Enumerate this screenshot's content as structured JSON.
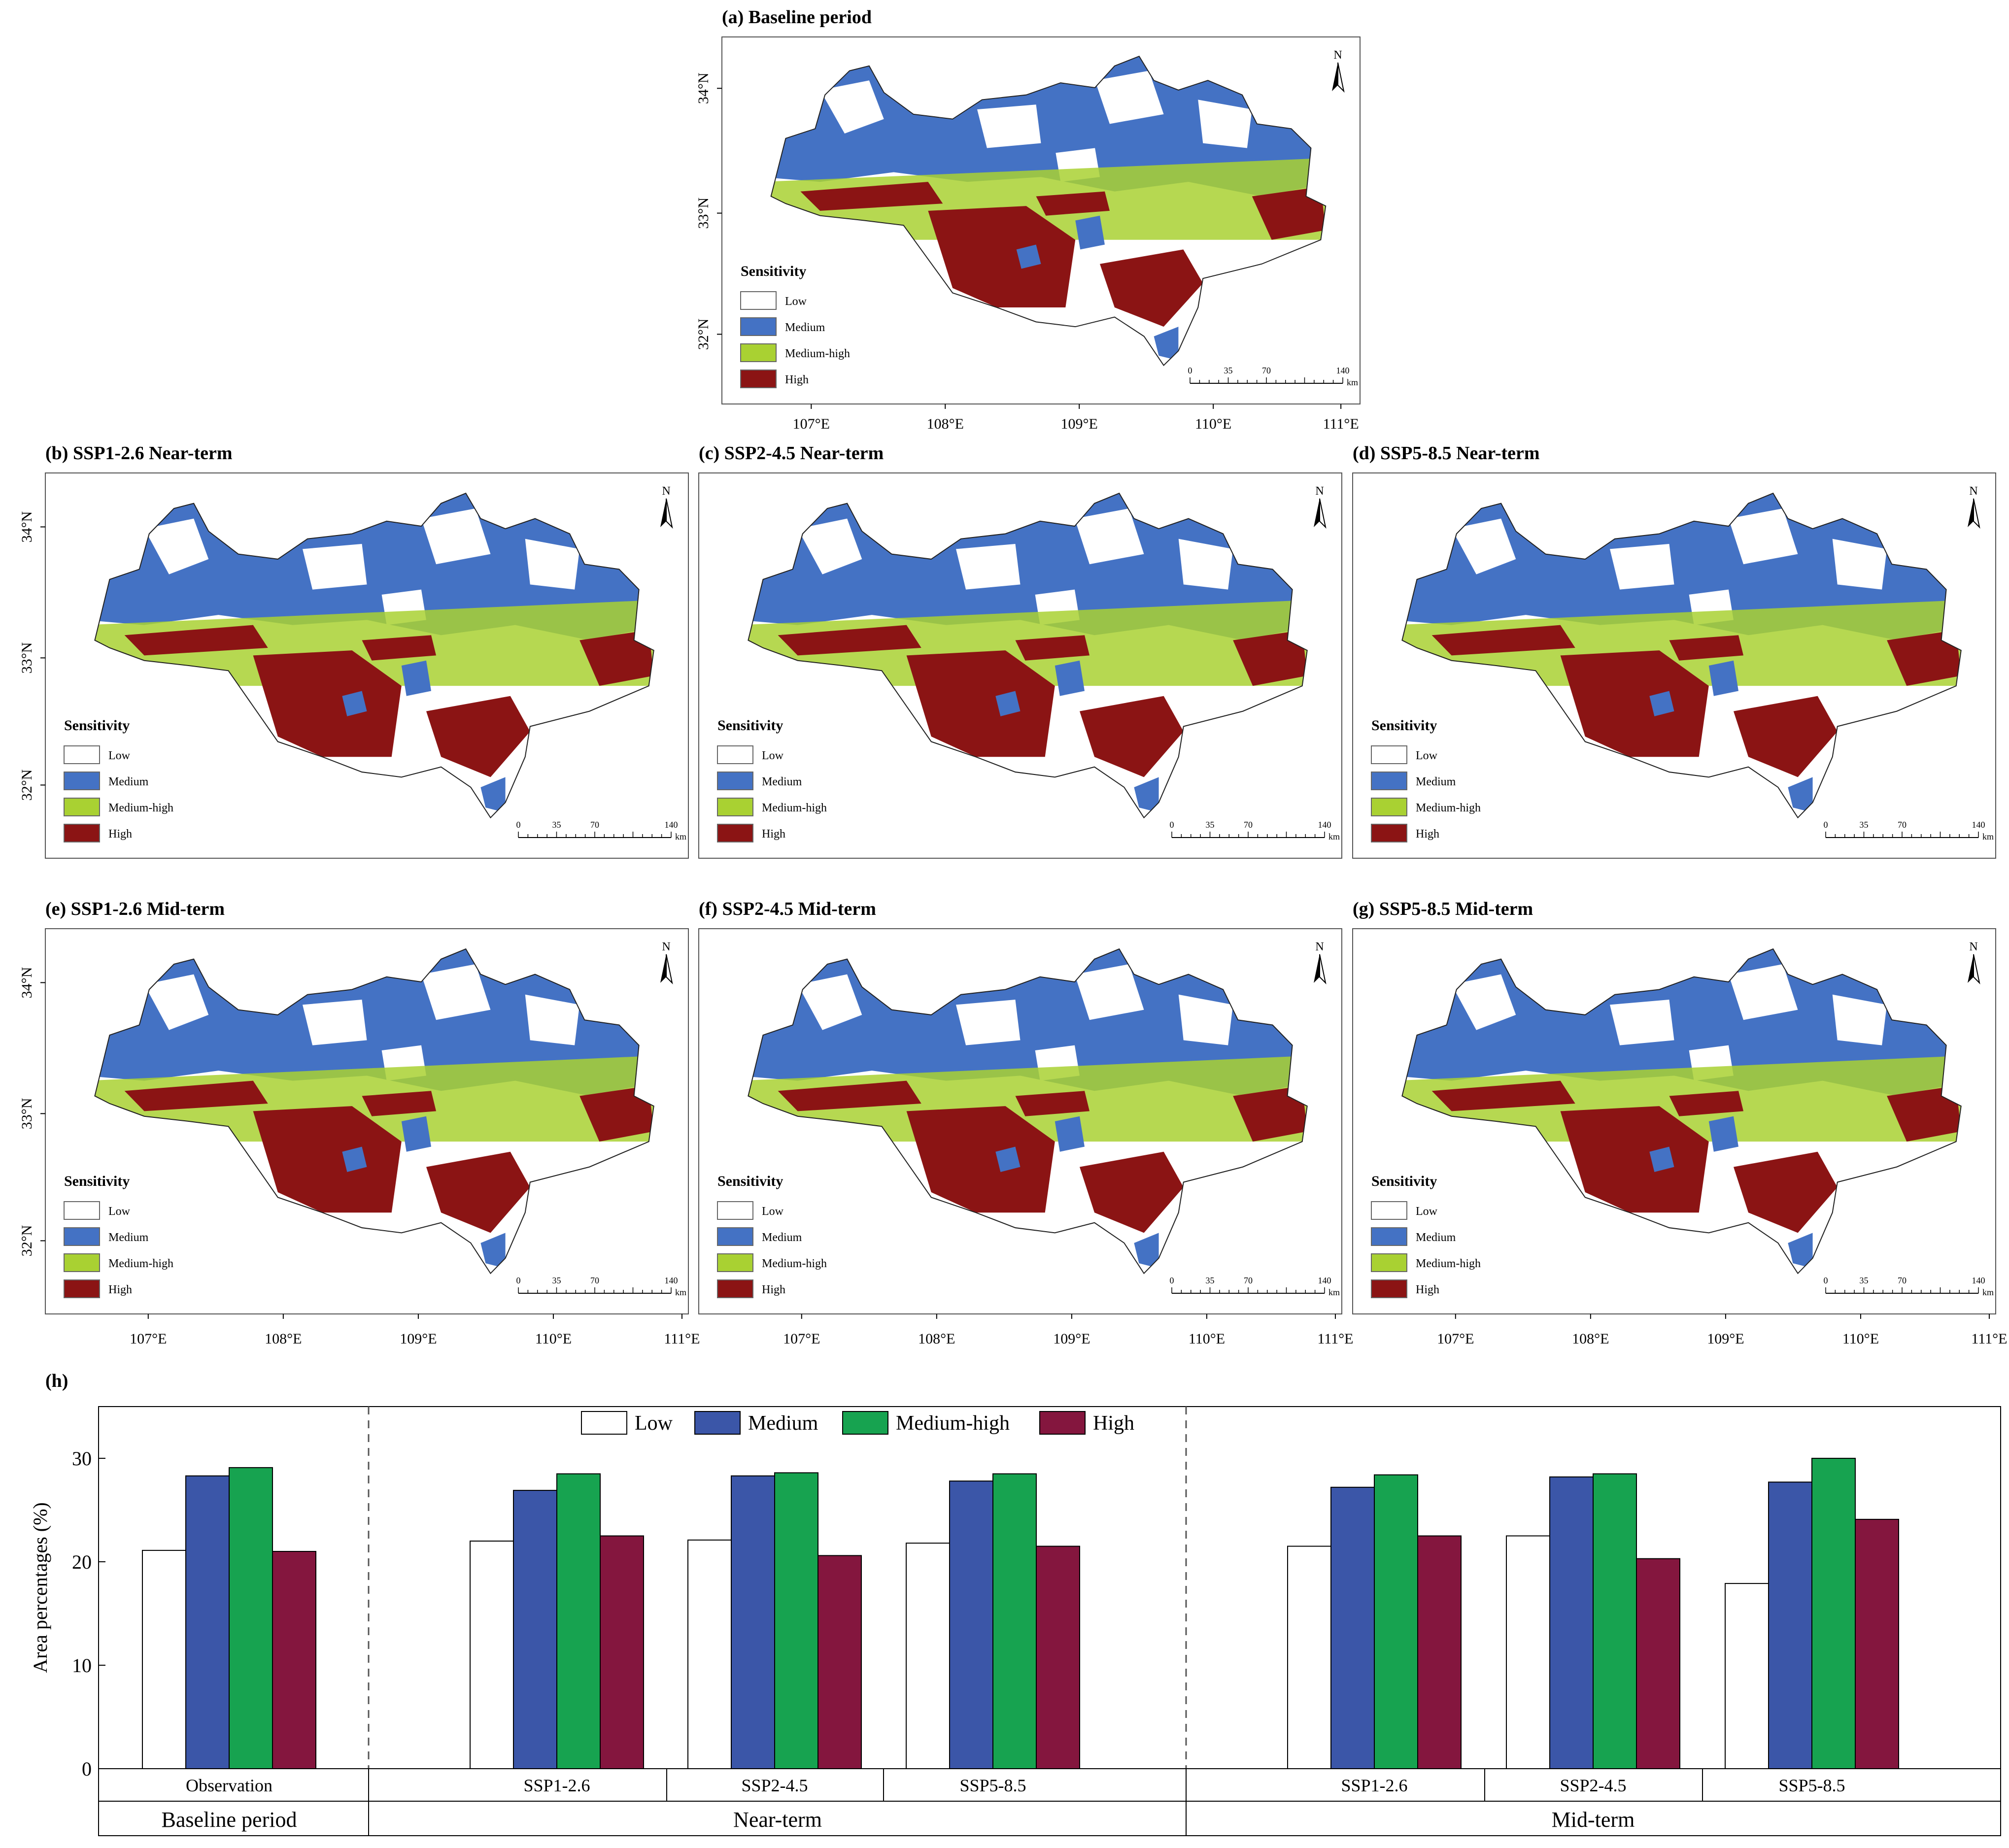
{
  "legend": {
    "title": "Sensitivity",
    "classes": [
      {
        "label": "Low",
        "color": "#ffffff"
      },
      {
        "label": "Medium",
        "color": "#4472c4"
      },
      {
        "label": "Medium-high",
        "color": "#a9d132"
      },
      {
        "label": "High",
        "color": "#8b1414"
      }
    ]
  },
  "map_axes": {
    "lon_labels": [
      "107°E",
      "108°E",
      "109°E",
      "110°E",
      "111°E"
    ],
    "lat_labels": [
      "34°N",
      "33°N",
      "32°N"
    ],
    "north": "N",
    "scalebar": {
      "ticks": [
        "0",
        "35",
        "70",
        "140"
      ],
      "unit": "km"
    }
  },
  "maps": [
    {
      "id": "a",
      "title": "(a) Baseline period"
    },
    {
      "id": "b",
      "title": "(b) SSP1-2.6  Near-term"
    },
    {
      "id": "c",
      "title": "(c) SSP2-4.5  Near-term"
    },
    {
      "id": "d",
      "title": "(d) SSP5-8.5  Near-term"
    },
    {
      "id": "e",
      "title": "(e) SSP1-2.6  Mid-term"
    },
    {
      "id": "f",
      "title": "(f) SSP2-4.5  Mid-term"
    },
    {
      "id": "g",
      "title": "(g) SSP5-8.5  Mid-term"
    }
  ],
  "chart_data": {
    "type": "bar",
    "title": "(h)",
    "ylabel": "Area percentages (%)",
    "xlabel": "",
    "ylim": [
      0,
      35
    ],
    "yticks": [
      0,
      10,
      20,
      30
    ],
    "legend_position": "top-center",
    "series_names": [
      "Low",
      "Medium",
      "Medium-high",
      "High"
    ],
    "series_colors": [
      "#ffffff",
      "#3b56a8",
      "#17a350",
      "#84163e"
    ],
    "groups": [
      {
        "scenario": "Observation",
        "period": "Baseline period",
        "values": [
          21.1,
          28.3,
          29.1,
          21.0
        ]
      },
      {
        "scenario": "SSP1-2.6",
        "period": "Near-term",
        "values": [
          22.0,
          26.9,
          28.5,
          22.5
        ]
      },
      {
        "scenario": "SSP2-4.5",
        "period": "Near-term",
        "values": [
          22.1,
          28.3,
          28.6,
          20.6
        ]
      },
      {
        "scenario": "SSP5-8.5",
        "period": "Near-term",
        "values": [
          21.8,
          27.8,
          28.5,
          21.5
        ]
      },
      {
        "scenario": "SSP1-2.6",
        "period": "Mid-term",
        "values": [
          21.5,
          27.2,
          28.4,
          22.5
        ]
      },
      {
        "scenario": "SSP2-4.5",
        "period": "Mid-term",
        "values": [
          22.5,
          28.2,
          28.5,
          20.3
        ]
      },
      {
        "scenario": "SSP5-8.5",
        "period": "Mid-term",
        "values": [
          17.9,
          27.7,
          30.0,
          24.1
        ]
      }
    ],
    "periods": [
      "Baseline period",
      "Near-term",
      "Mid-term"
    ]
  }
}
